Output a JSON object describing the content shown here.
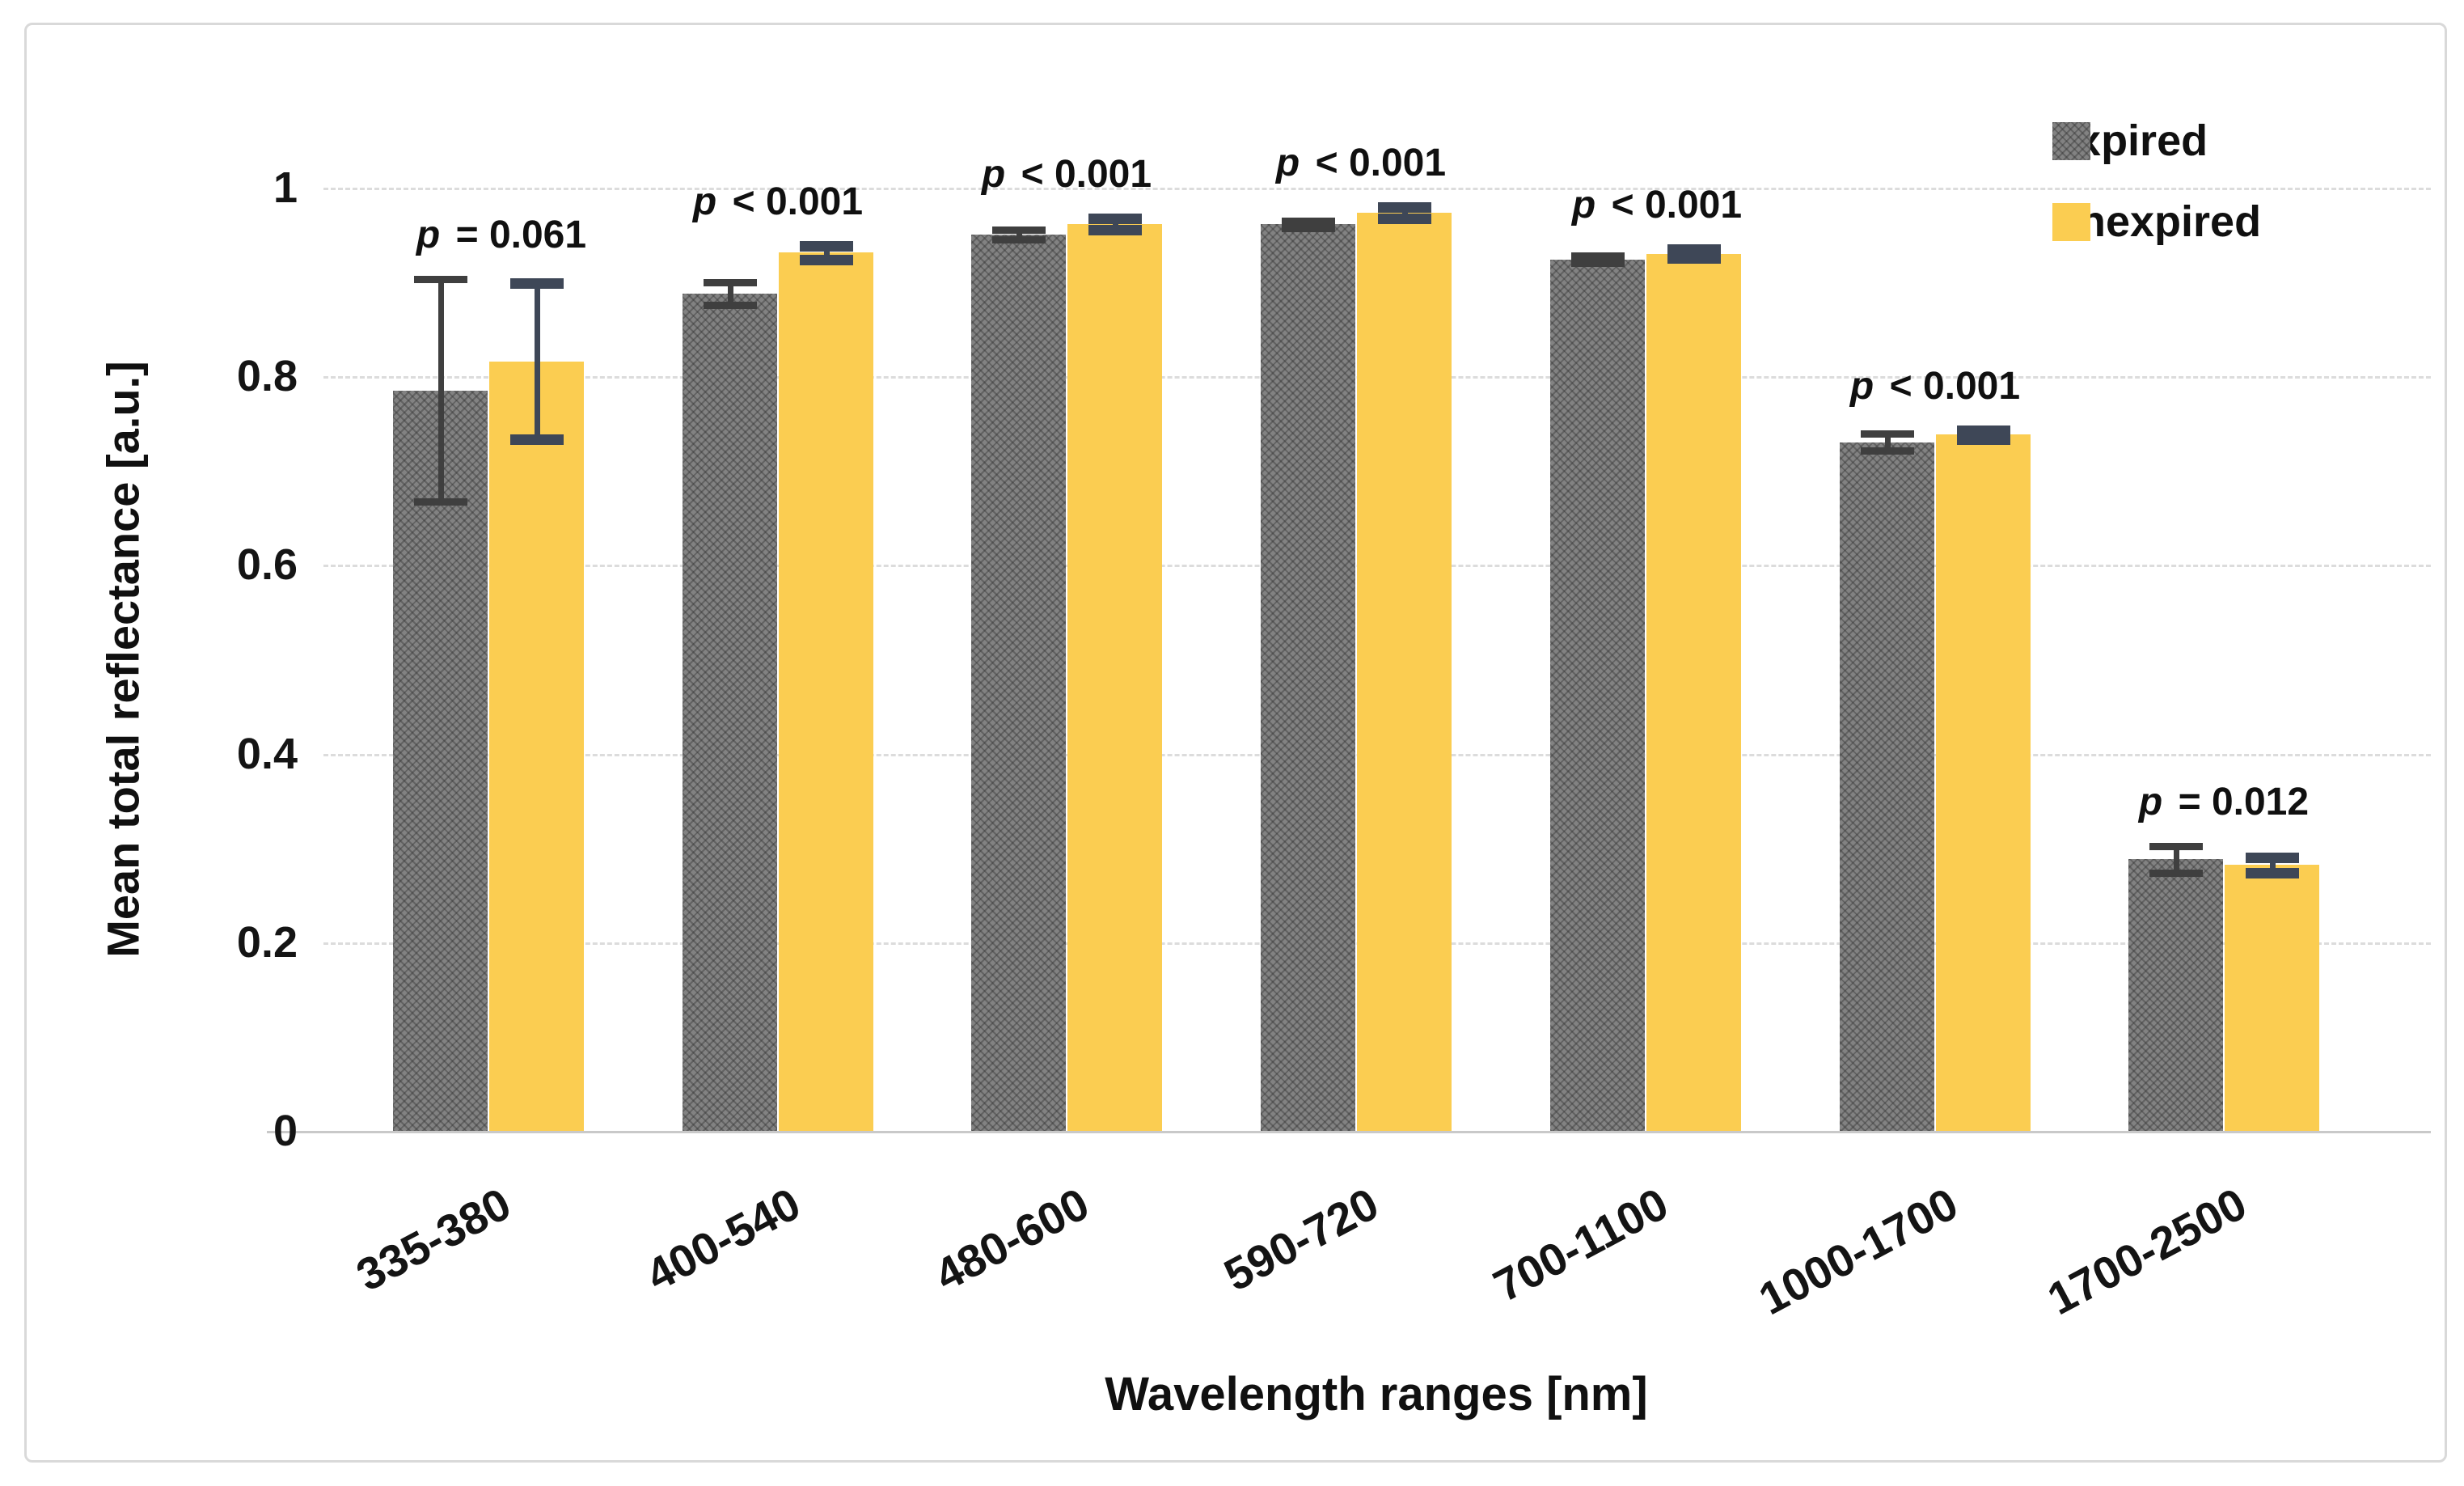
{
  "chart_data": {
    "type": "bar",
    "title": "",
    "categories": [
      "335-380",
      "400-540",
      "480-600",
      "590-720",
      "700-1100",
      "1000-1700",
      "1700-2500"
    ],
    "series": [
      {
        "name": "expired",
        "color": "#828282",
        "pattern": "diagonal-hatch",
        "error_color": "#3f3f3f",
        "values": [
          0.785,
          0.888,
          0.95,
          0.961,
          0.924,
          0.73,
          0.288
        ],
        "errors": [
          0.118,
          0.012,
          0.005,
          0.004,
          0.004,
          0.009,
          0.014
        ]
      },
      {
        "name": "unexpired",
        "color": "#fbcd51",
        "pattern": "solid",
        "error_color": "#3e4757",
        "values": [
          0.816,
          0.931,
          0.961,
          0.973,
          0.93,
          0.738,
          0.282
        ],
        "errors": [
          0.083,
          0.007,
          0.006,
          0.006,
          0.005,
          0.005,
          0.008
        ]
      }
    ],
    "p_values": [
      "p = 0.061",
      "p < 0.001",
      "p < 0.001",
      "p < 0.001",
      "p < 0.001",
      "p < 0.001",
      "p = 0.012"
    ],
    "xlabel": "Wavelength ranges [nm]",
    "ylabel": "Mean total reflectance [a.u.]",
    "y_ticks": [
      0,
      0.2,
      0.4,
      0.6,
      0.8,
      1
    ],
    "y_tick_labels": [
      "0",
      "0.2",
      "0.4",
      "0.6",
      "0.8",
      "1"
    ],
    "ylim": [
      0,
      1.05
    ],
    "grid": "horizontal-dashed",
    "legend_position": "top-right",
    "legend": [
      "expired",
      "unexpired"
    ]
  }
}
